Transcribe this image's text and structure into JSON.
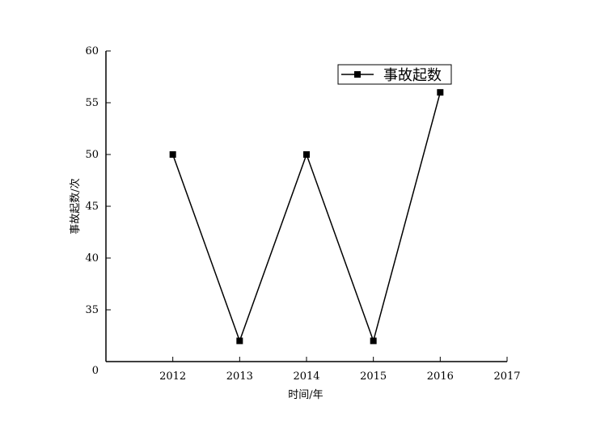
{
  "chart_data": {
    "type": "line",
    "title": "",
    "xlabel": "时间/年",
    "ylabel": "事故起数/次",
    "x": [
      2012,
      2013,
      2014,
      2015,
      2016
    ],
    "x_ticks": [
      2012,
      2013,
      2014,
      2015,
      2016,
      2017
    ],
    "y_ticks": [
      35,
      40,
      45,
      50,
      55,
      60
    ],
    "y_origin_label": "0",
    "xlim": [
      2011,
      2017
    ],
    "ylim": [
      30,
      60
    ],
    "series": [
      {
        "name": "事故起数",
        "values": [
          50,
          32,
          50,
          32,
          56
        ],
        "marker": "square",
        "color": "#000000"
      }
    ],
    "grid": false,
    "legend_position": "top-right"
  }
}
